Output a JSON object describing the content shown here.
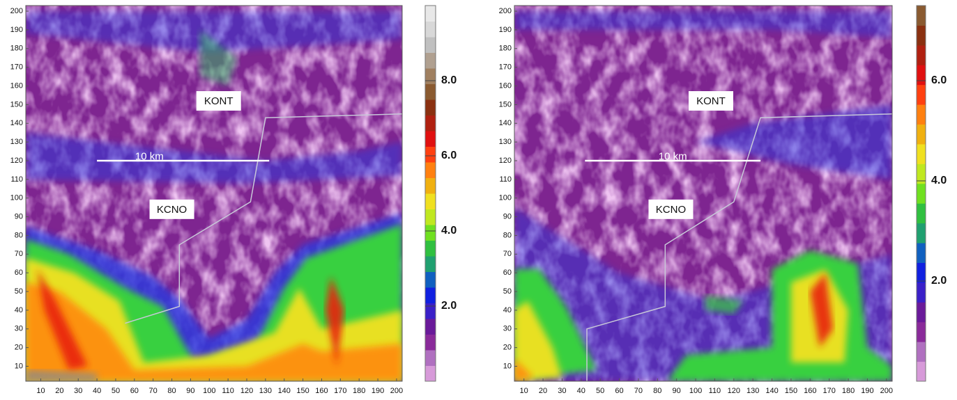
{
  "chart_data": [
    {
      "type": "heatmap",
      "xlim": [
        2,
        203
      ],
      "ylim": [
        2,
        203
      ],
      "xticks": [
        10,
        20,
        30,
        40,
        50,
        60,
        70,
        80,
        90,
        100,
        110,
        120,
        130,
        140,
        150,
        160,
        170,
        180,
        190,
        200
      ],
      "yticks": [
        10,
        20,
        30,
        40,
        50,
        60,
        70,
        80,
        90,
        100,
        110,
        120,
        130,
        140,
        150,
        160,
        170,
        180,
        190,
        200
      ],
      "annotations": [
        "KONT",
        "KCNO",
        "10 km"
      ],
      "colorbar": {
        "lim": [
          0,
          10
        ],
        "ticks": [
          {
            "value": 2,
            "label": "2.0"
          },
          {
            "value": 4,
            "label": "4.0"
          },
          {
            "value": 6,
            "label": "6.0"
          },
          {
            "value": 8,
            "label": "8.0"
          }
        ],
        "colors": [
          "#d79ad9",
          "#b070c0",
          "#8a2a9a",
          "#6a1a9a",
          "#3a20c8",
          "#1020e0",
          "#1060c0",
          "#20a070",
          "#30c040",
          "#70e020",
          "#c0e820",
          "#f0e020",
          "#f0b010",
          "#ff8010",
          "#ff4010",
          "#e01010",
          "#b02010",
          "#8a3010",
          "#8a5a30",
          "#a08060",
          "#b0a090",
          "#c0c0c0",
          "#d8d8d8",
          "#e8e8e8"
        ]
      }
    },
    {
      "type": "heatmap",
      "xlim": [
        5,
        203
      ],
      "ylim": [
        2,
        203
      ],
      "xticks": [
        10,
        20,
        30,
        40,
        50,
        60,
        70,
        80,
        90,
        100,
        110,
        120,
        130,
        140,
        150,
        160,
        170,
        180,
        190,
        200
      ],
      "yticks": [
        10,
        20,
        30,
        40,
        50,
        60,
        70,
        80,
        90,
        100,
        110,
        120,
        130,
        140,
        150,
        160,
        170,
        180,
        190,
        200
      ],
      "annotations": [
        "KONT",
        "KCNO",
        "10 km"
      ],
      "colorbar": {
        "lim": [
          0,
          7.5
        ],
        "ticks": [
          {
            "value": 2,
            "label": "2.0"
          },
          {
            "value": 4,
            "label": "4.0"
          },
          {
            "value": 6,
            "label": "6.0"
          }
        ],
        "colors": [
          "#d79ad9",
          "#b070c0",
          "#8a2a9a",
          "#6a1a9a",
          "#3a20c8",
          "#1020e0",
          "#1060c0",
          "#20a070",
          "#30c040",
          "#70e020",
          "#c0e820",
          "#f0e020",
          "#f0b010",
          "#ff8010",
          "#ff4010",
          "#e01010",
          "#b02010",
          "#8a3010",
          "#8a5a30"
        ]
      }
    }
  ]
}
